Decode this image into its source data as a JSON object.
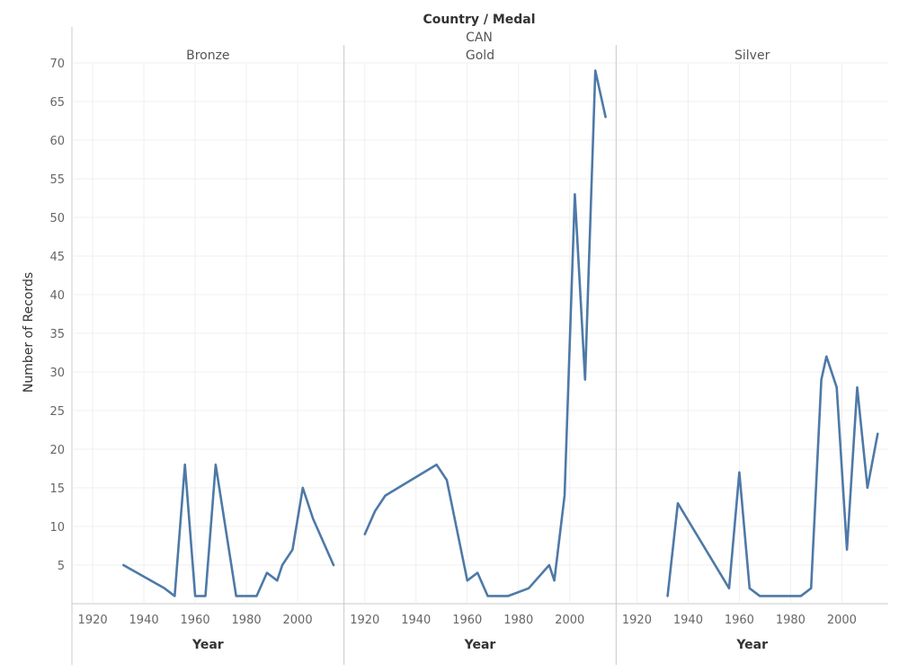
{
  "header": {
    "title": "Country / Medal",
    "country": "CAN"
  },
  "chart_data": {
    "type": "line",
    "ylabel": "Number of Records",
    "xlabel": "Year",
    "ylim": [
      0,
      70
    ],
    "xlim": [
      1914,
      2016
    ],
    "y_ticks": [
      5,
      10,
      15,
      20,
      25,
      30,
      35,
      40,
      45,
      50,
      55,
      60,
      65,
      70
    ],
    "x_ticks": [
      1920,
      1940,
      1960,
      1980,
      2000
    ],
    "grid": true,
    "line_color": "#4e79a7",
    "panels": [
      {
        "name": "Bronze",
        "x": [
          1932,
          1948,
          1952,
          1956,
          1960,
          1964,
          1968,
          1976,
          1984,
          1988,
          1992,
          1994,
          1998,
          2002,
          2006,
          2014
        ],
        "y": [
          5,
          2,
          1,
          18,
          1,
          1,
          18,
          1,
          1,
          4,
          3,
          5,
          7,
          15,
          11,
          5
        ]
      },
      {
        "name": "Gold",
        "x": [
          1920,
          1924,
          1928,
          1948,
          1952,
          1960,
          1964,
          1968,
          1976,
          1984,
          1992,
          1994,
          1998,
          2002,
          2006,
          2010,
          2014
        ],
        "y": [
          9,
          12,
          14,
          18,
          16,
          3,
          4,
          1,
          1,
          2,
          5,
          3,
          14,
          53,
          29,
          69,
          63
        ]
      },
      {
        "name": "Silver",
        "x": [
          1932,
          1936,
          1956,
          1960,
          1964,
          1968,
          1984,
          1988,
          1992,
          1994,
          1998,
          2002,
          2006,
          2010,
          2014
        ],
        "y": [
          1,
          13,
          2,
          17,
          2,
          1,
          1,
          2,
          29,
          32,
          28,
          7,
          28,
          15,
          22
        ]
      }
    ]
  }
}
